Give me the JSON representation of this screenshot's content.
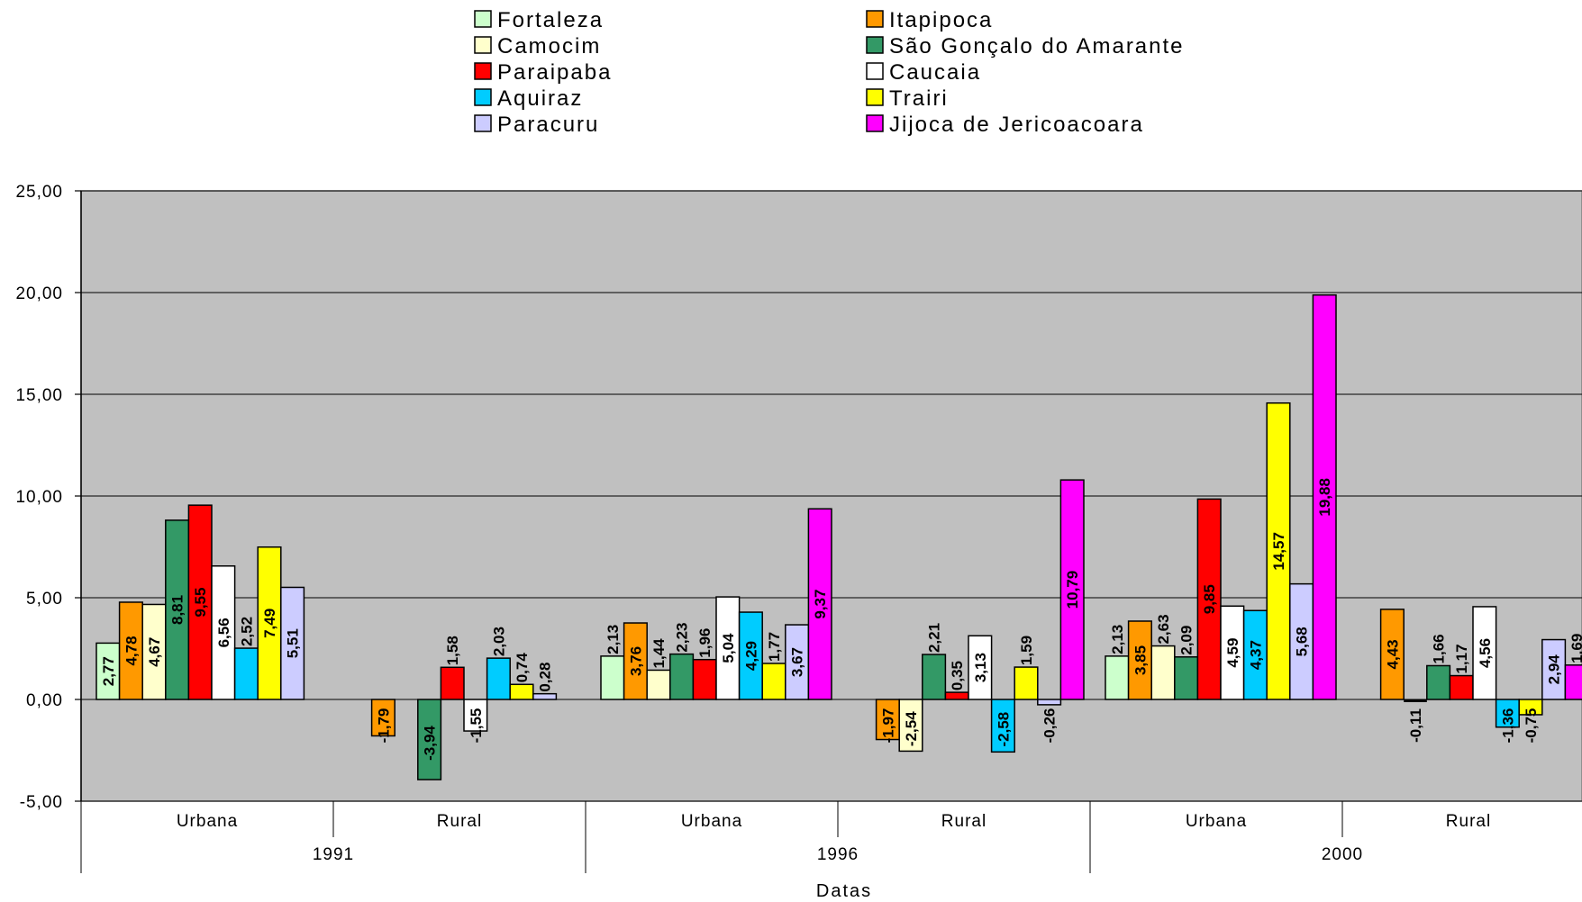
{
  "chart_data": {
    "type": "bar",
    "xlabel": "Datas",
    "ylabel": "",
    "ylim": [
      -5,
      25
    ],
    "yticks": [
      25,
      20,
      15,
      10,
      5,
      0,
      -5
    ],
    "ytick_labels": [
      "25,00",
      "20,00",
      "15,00",
      "10,00",
      "5,00",
      "0,00",
      "-5,00"
    ],
    "grid": true,
    "legend_position": "top",
    "plot_background": "#C0C0C0",
    "groups": [
      {
        "label": "Urbana",
        "year": "1991"
      },
      {
        "label": "Rural",
        "year": "1991"
      },
      {
        "label": "Urbana",
        "year": "1996"
      },
      {
        "label": "Rural",
        "year": "1996"
      },
      {
        "label": "Urbana",
        "year": "2000"
      },
      {
        "label": "Rural",
        "year": "2000"
      }
    ],
    "years": [
      "1991",
      "1996",
      "2000"
    ],
    "series": [
      {
        "name": "Fortaleza",
        "color": "#CCFFCC",
        "values": [
          2.77,
          null,
          2.13,
          null,
          2.13,
          null
        ],
        "labels": [
          "2,77",
          "",
          "2,13",
          "",
          "2,13",
          ""
        ]
      },
      {
        "name": "Itapipoca",
        "color": "#FF9900",
        "values": [
          4.78,
          -1.79,
          3.76,
          -1.97,
          3.85,
          4.43
        ],
        "labels": [
          "4,78",
          "-1,79",
          "3,76",
          "-1,97",
          "3,85",
          "4,43"
        ]
      },
      {
        "name": "Camocim",
        "color": "#FFFFCC",
        "values": [
          4.67,
          null,
          1.44,
          -2.54,
          2.63,
          null
        ],
        "labels": [
          "4,67",
          "",
          "1,44",
          "-2,54",
          "2,63",
          ""
        ]
      },
      {
        "name": "São Gonçalo do Amarante",
        "color": "#339966",
        "values": [
          8.81,
          -3.94,
          2.23,
          2.21,
          2.09,
          1.66
        ],
        "labels": [
          "8,81",
          "-3,94",
          "2,23",
          "2,21",
          "2,09",
          "1,66"
        ]
      },
      {
        "name": "Paraipaba",
        "color": "#FF0000",
        "values": [
          9.55,
          1.58,
          1.96,
          0.35,
          9.85,
          1.17
        ],
        "labels": [
          "9,55",
          "1,58",
          "1,96",
          "0,35",
          "9,85",
          "1,17"
        ]
      },
      {
        "name": "Caucaia",
        "color": "#FFFFFF",
        "values": [
          6.56,
          -1.55,
          5.04,
          3.13,
          4.59,
          4.56
        ],
        "labels": [
          "6,56",
          "-1,55",
          "5,04",
          "3,13",
          "4,59",
          "4,56"
        ]
      },
      {
        "name": "Aquiraz",
        "color": "#00CCFF",
        "values": [
          2.52,
          2.03,
          4.29,
          -2.58,
          4.37,
          -1.36
        ],
        "labels": [
          "2,52",
          "2,03",
          "4,29",
          "-2,58",
          "4,37",
          "-1,36"
        ]
      },
      {
        "name": "Trairi",
        "color": "#FFFF00",
        "values": [
          7.49,
          0.74,
          1.77,
          1.59,
          14.57,
          -0.75
        ],
        "labels": [
          "7,49",
          "0,74",
          "1,77",
          "1,59",
          "14,57",
          "-0,75"
        ]
      },
      {
        "name": "Paracuru",
        "color": "#CCCCFF",
        "values": [
          5.51,
          0.28,
          3.67,
          -0.26,
          5.68,
          2.94
        ],
        "labels": [
          "5,51",
          "0,28",
          "3,67",
          "-0,26",
          "5,68",
          "2,94"
        ]
      },
      {
        "name": "Jijoca de Jericoacoara",
        "color": "#FF00FF",
        "values": [
          null,
          null,
          9.37,
          10.79,
          19.88,
          1.69
        ],
        "labels": [
          "",
          "",
          "9,37",
          "10,79",
          "19,88",
          "1,69"
        ]
      }
    ],
    "extra_labels": [
      {
        "group": 5,
        "value": -0.11,
        "label": "-0,11"
      }
    ]
  }
}
